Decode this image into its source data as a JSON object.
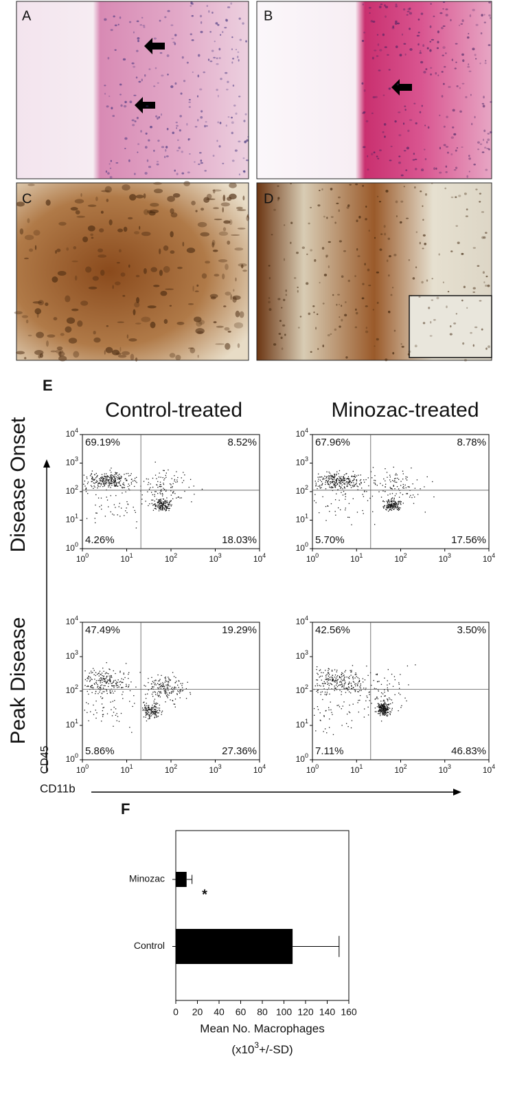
{
  "panels": [
    {
      "label": "A"
    },
    {
      "label": "B"
    },
    {
      "label": "C"
    },
    {
      "label": "D"
    }
  ],
  "flow": {
    "label": "E",
    "columns": [
      "Control-treated",
      "Minozac-treated"
    ],
    "rows": [
      "Disease Onset",
      "Peak Disease"
    ],
    "y_axis_label": "CD45",
    "x_axis_label": "CD11b",
    "log_scale": true,
    "lim": [
      1,
      10000
    ],
    "ticks": [
      {
        "value": 1,
        "label": "10",
        "sup": "0"
      },
      {
        "value": 10,
        "label": "10",
        "sup": "1"
      },
      {
        "value": 100,
        "label": "10",
        "sup": "2"
      },
      {
        "value": 1000,
        "label": "10",
        "sup": "3"
      },
      {
        "value": 10000,
        "label": "10",
        "sup": "4"
      }
    ],
    "plots": [
      {
        "quadrants": [
          "69.19%",
          "8.52%",
          "4.26%",
          "18.03%"
        ]
      },
      {
        "quadrants": [
          "67.96%",
          "8.78%",
          "5.70%",
          "17.56%"
        ]
      },
      {
        "quadrants": [
          "47.49%",
          "19.29%",
          "5.86%",
          "27.36%"
        ]
      },
      {
        "quadrants": [
          "42.56%",
          "3.50%",
          "7.11%",
          "46.83%"
        ]
      }
    ]
  },
  "chart_data": {
    "type": "bar",
    "orientation": "horizontal",
    "panel_label": "F",
    "categories": [
      "Minozac",
      "Control"
    ],
    "values": [
      10,
      108
    ],
    "errors": [
      5,
      43
    ],
    "color": "#000000",
    "annotation": "*",
    "xlim": [
      0,
      160
    ],
    "xticks": [
      0,
      20,
      40,
      60,
      80,
      100,
      120,
      140,
      160
    ],
    "xlabel": "Mean No. Macrophages",
    "xlabel_note": [
      "(x10",
      "3",
      "+/-SD)"
    ]
  }
}
